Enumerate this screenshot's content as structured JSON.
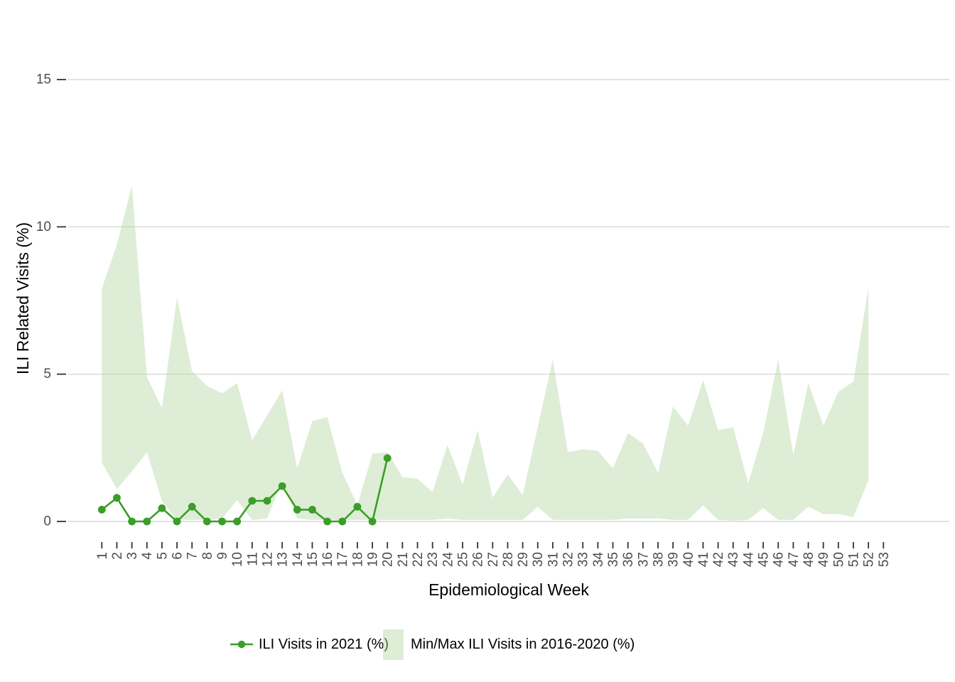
{
  "chart_data": {
    "type": "line+ribbon",
    "title": "",
    "xlabel": "Epidemiological Week",
    "ylabel": "ILI Related Visits (%)",
    "x_ticks": [
      1,
      2,
      3,
      4,
      5,
      6,
      7,
      8,
      9,
      10,
      11,
      12,
      13,
      14,
      15,
      16,
      17,
      18,
      19,
      20,
      21,
      22,
      23,
      24,
      25,
      26,
      27,
      28,
      29,
      30,
      31,
      32,
      33,
      34,
      35,
      36,
      37,
      38,
      39,
      40,
      41,
      42,
      43,
      44,
      45,
      46,
      47,
      48,
      49,
      50,
      51,
      52,
      53
    ],
    "y_ticks": [
      0,
      5,
      10,
      15
    ],
    "xlim": [
      1,
      53
    ],
    "ylim": [
      0,
      15.5
    ],
    "grid": "horizontal major gridlines only",
    "legend_position": "bottom",
    "series": [
      {
        "name": "ILI Visits in 2021 (%)",
        "type": "line",
        "marker": "circle",
        "color": "#3a9e28",
        "x": [
          1,
          2,
          3,
          4,
          5,
          6,
          7,
          8,
          9,
          10,
          11,
          12,
          13,
          14,
          15,
          16,
          17,
          18,
          19,
          20
        ],
        "values": [
          0.4,
          0.8,
          0,
          0,
          0.45,
          0,
          0.5,
          0,
          0,
          0,
          0.7,
          0.7,
          1.2,
          0.4,
          0.4,
          0,
          0,
          0.5,
          0,
          2.15
        ]
      },
      {
        "name": "Min/Max ILI Visits in 2016-2020 (%)",
        "type": "ribbon",
        "color": "#b5d8a3",
        "opacity": 0.45,
        "x": [
          1,
          2,
          3,
          4,
          5,
          6,
          7,
          8,
          9,
          10,
          11,
          12,
          13,
          14,
          15,
          16,
          17,
          18,
          19,
          20,
          21,
          22,
          23,
          24,
          25,
          26,
          27,
          28,
          29,
          30,
          31,
          32,
          33,
          34,
          35,
          36,
          37,
          38,
          39,
          40,
          41,
          42,
          43,
          44,
          45,
          46,
          47,
          48,
          49,
          50,
          51,
          52
        ],
        "max": [
          7.9,
          9.4,
          11.4,
          4.9,
          3.85,
          7.6,
          5.1,
          4.6,
          4.35,
          4.7,
          2.75,
          3.6,
          4.45,
          1.8,
          3.4,
          3.55,
          1.65,
          0.55,
          2.3,
          2.35,
          1.5,
          1.45,
          1.0,
          2.6,
          1.25,
          3.1,
          0.8,
          1.6,
          0.9,
          3.2,
          5.5,
          2.35,
          2.45,
          2.4,
          1.8,
          3.0,
          2.65,
          1.65,
          3.9,
          3.25,
          4.8,
          3.1,
          3.2,
          1.3,
          3.0,
          5.5,
          2.25,
          4.7,
          3.25,
          4.4,
          4.75,
          7.95
        ],
        "min": [
          2.0,
          1.1,
          1.7,
          2.35,
          0.7,
          0.05,
          0.05,
          0.05,
          0.1,
          0.73,
          0.05,
          0.1,
          1.4,
          0.1,
          0.05,
          0.05,
          0.05,
          0.05,
          0.05,
          0.05,
          0.05,
          0.05,
          0.05,
          0.1,
          0.05,
          0.05,
          0.05,
          0.05,
          0.05,
          0.5,
          0.05,
          0.05,
          0.05,
          0.05,
          0.05,
          0.1,
          0.1,
          0.1,
          0.05,
          0.05,
          0.55,
          0.05,
          0.03,
          0.05,
          0.45,
          0.05,
          0.05,
          0.5,
          0.25,
          0.25,
          0.15,
          1.4
        ]
      }
    ]
  },
  "legend": {
    "items": [
      {
        "label": "ILI Visits in 2021 (%)",
        "key": "line-with-dot"
      },
      {
        "label": "Min/Max ILI Visits in 2016-2020 (%)",
        "key": "filled-square"
      }
    ]
  },
  "colors": {
    "background": "#ffffff",
    "line": "#3a9e28",
    "ribbon": "#b5d8a3",
    "gridline": "#d9d9d9",
    "tick_mark": "#333333",
    "tick_label": "#4d4d4d",
    "axis_title": "#000000",
    "legend_text": "#000000"
  }
}
